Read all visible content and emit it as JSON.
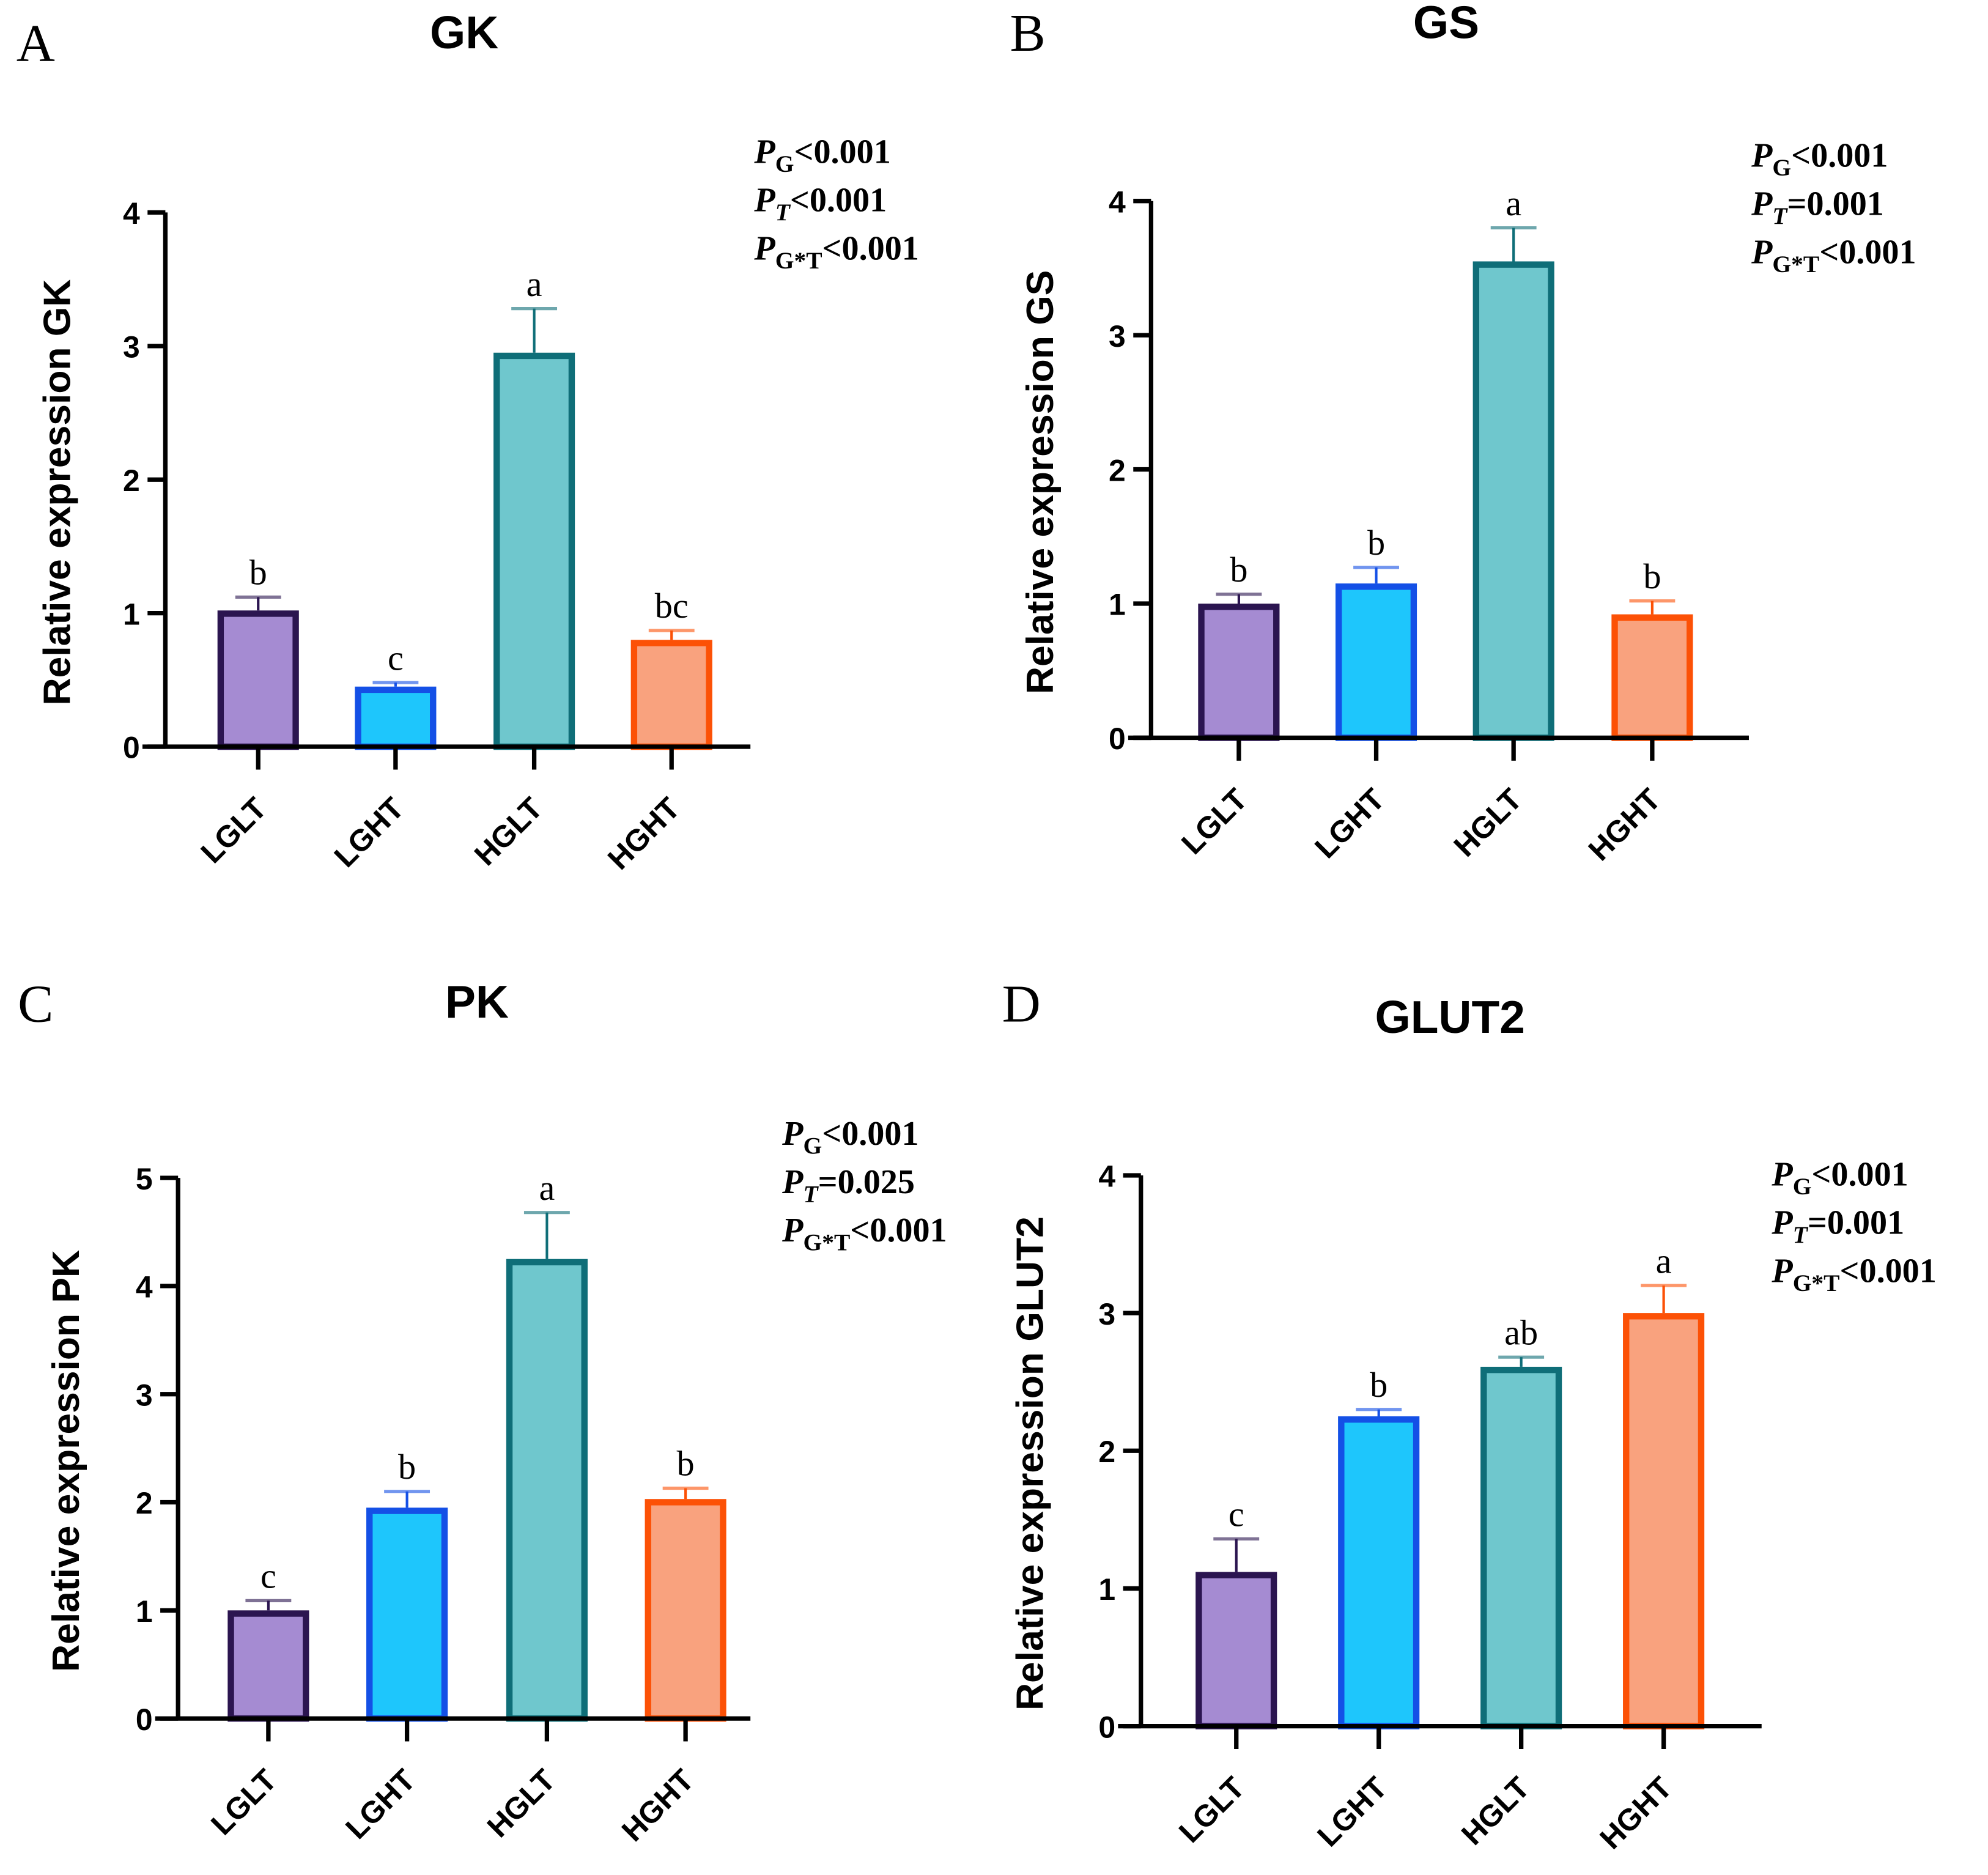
{
  "colors": {
    "fills": [
      "#a58bd2",
      "#1ec6fc",
      "#6fc7cd",
      "#f9a27e"
    ],
    "strokes": [
      "#2b1550",
      "#1450e6",
      "#0f6e78",
      "#fc5106"
    ]
  },
  "chart_data": [
    {
      "panel": "A",
      "type": "bar",
      "title": "GK",
      "ylabel": "Relative expression GK",
      "xlabel": "",
      "ylim": [
        0,
        4
      ],
      "yticks": [
        "0",
        "1",
        "2",
        "3",
        "4"
      ],
      "categories": [
        "LGLT",
        "LGHT",
        "HGLT",
        "HGHT"
      ],
      "values": [
        1.02,
        0.45,
        2.95,
        0.8
      ],
      "error_upper": [
        1.12,
        0.48,
        3.28,
        0.87
      ],
      "significance": [
        "b",
        "c",
        "a",
        "bc"
      ],
      "pvalues": [
        {
          "p": "P",
          "sub": "G",
          "rel": "<0.001"
        },
        {
          "p": "P",
          "sub": "T",
          "rel": "<0.001"
        },
        {
          "p": "P",
          "sub": "G*T",
          "rel": "<0.001"
        }
      ]
    },
    {
      "panel": "B",
      "type": "bar",
      "title": "GS",
      "ylabel": "Relative expression GS",
      "xlabel": "",
      "ylim": [
        0,
        4
      ],
      "yticks": [
        "0",
        "1",
        "2",
        "3",
        "4"
      ],
      "categories": [
        "LGLT",
        "LGHT",
        "HGLT",
        "HGHT"
      ],
      "values": [
        1.0,
        1.15,
        3.55,
        0.92
      ],
      "error_upper": [
        1.07,
        1.27,
        3.8,
        1.02
      ],
      "significance": [
        "b",
        "b",
        "a",
        "b"
      ],
      "pvalues": [
        {
          "p": "P",
          "sub": "G",
          "rel": "<0.001"
        },
        {
          "p": "P",
          "sub": "T",
          "rel": "=0.001"
        },
        {
          "p": "P",
          "sub": "G*T",
          "rel": "<0.001"
        }
      ]
    },
    {
      "panel": "C",
      "type": "bar",
      "title": "PK",
      "ylabel": "Relative expression PK",
      "xlabel": "",
      "ylim": [
        0,
        5
      ],
      "yticks": [
        "0",
        "1",
        "2",
        "3",
        "4",
        "5"
      ],
      "categories": [
        "LGLT",
        "LGHT",
        "HGLT",
        "HGHT"
      ],
      "values": [
        1.0,
        1.95,
        4.25,
        2.03
      ],
      "error_upper": [
        1.09,
        2.1,
        4.68,
        2.13
      ],
      "significance": [
        "c",
        "b",
        "a",
        "b"
      ],
      "pvalues": [
        {
          "p": "P",
          "sub": "G",
          "rel": "<0.001"
        },
        {
          "p": "P",
          "sub": "T",
          "rel": "=0.025"
        },
        {
          "p": "P",
          "sub": "G*T",
          "rel": "<0.001"
        }
      ]
    },
    {
      "panel": "D",
      "type": "bar",
      "title": "GLUT2",
      "ylabel": "Relative expression GLUT2",
      "xlabel": "",
      "ylim": [
        0,
        4
      ],
      "yticks": [
        "0",
        "1",
        "2",
        "3",
        "4"
      ],
      "categories": [
        "LGLT",
        "LGHT",
        "HGLT",
        "HGHT"
      ],
      "values": [
        1.12,
        2.25,
        2.61,
        3.0
      ],
      "error_upper": [
        1.36,
        2.3,
        2.68,
        3.2
      ],
      "significance": [
        "c",
        "b",
        "ab",
        "a"
      ],
      "pvalues": [
        {
          "p": "P",
          "sub": "G",
          "rel": "<0.001"
        },
        {
          "p": "P",
          "sub": "T",
          "rel": "=0.001"
        },
        {
          "p": "P",
          "sub": "G*T",
          "rel": "<0.001"
        }
      ]
    }
  ]
}
